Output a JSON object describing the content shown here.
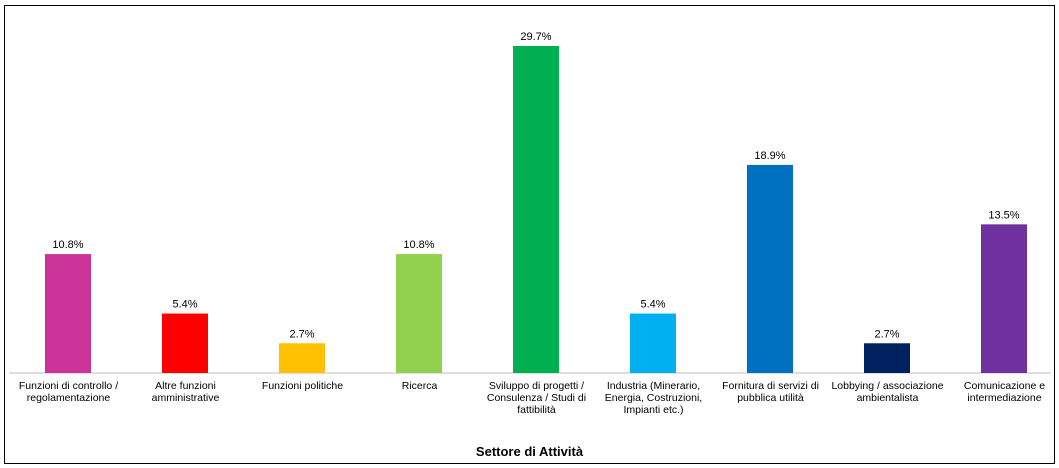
{
  "chart_data": {
    "type": "bar",
    "xlabel": "Settore di Attività",
    "ylabel": "",
    "ylim": [
      0,
      29.7
    ],
    "grid": false,
    "legend": "none",
    "categories": [
      "Funzioni di controllo / regolamentazione",
      "Altre funzioni amministrative",
      "Funzioni politiche",
      "Ricerca",
      "Sviluppo di progetti / Consulenza / Studi di fattibilità",
      "Industria (Minerario, Energia, Costruzioni, Impianti etc.)",
      "Fornitura di servizi di pubblica utilità",
      "Lobbying / associazione ambientalista",
      "Comunicazione e intermediazione"
    ],
    "values": [
      10.8,
      5.4,
      2.7,
      10.8,
      29.7,
      5.4,
      18.9,
      2.7,
      13.5
    ],
    "value_labels": [
      "10.8%",
      "5.4%",
      "2.7%",
      "10.8%",
      "29.7%",
      "5.4%",
      "18.9%",
      "2.7%",
      "13.5%"
    ],
    "colors": [
      "#CC3399",
      "#FF0000",
      "#FFC000",
      "#92D050",
      "#00B050",
      "#00B0F0",
      "#0070C0",
      "#002060",
      "#7030A0"
    ]
  }
}
